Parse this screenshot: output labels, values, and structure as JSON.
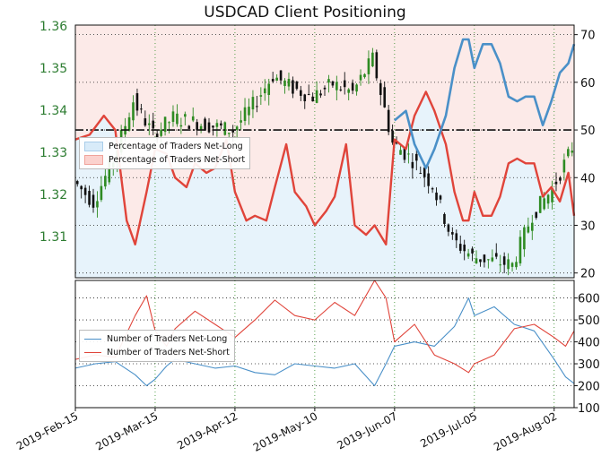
{
  "title": "USDCAD Client Positioning",
  "colors": {
    "price_axis": "#2e7d32",
    "up_candle": "#2e8b22",
    "down_candle": "#111111",
    "long": "#4a90c8",
    "short": "#e0443a",
    "long_fill": "#e6f2fb",
    "short_fill": "#fde6e4"
  },
  "x_ticks": [
    "2019-Feb-15",
    "2019-Mar-15",
    "2019-Apr-12",
    "2019-May-10",
    "2019-Jun-07",
    "2019-Jul-05",
    "2019-Aug-02"
  ],
  "legend_top": [
    "Percentage of Traders Net-Long",
    "Percentage of Traders Net-Short"
  ],
  "legend_bottom": [
    "Number of Traders Net-Long",
    "Number of Traders Net-Short"
  ],
  "chart_data": [
    {
      "type": "line",
      "title": "USDCAD Client Positioning",
      "x_range": [
        "2019-02-15",
        "2019-08-09"
      ],
      "left_axis": {
        "ticks": [
          1.31,
          1.32,
          1.33,
          1.34,
          1.35,
          1.36
        ],
        "range": [
          1.3,
          1.36
        ],
        "tick_color": "green"
      },
      "right_axis": {
        "ticks": [
          20,
          30,
          40,
          50,
          60,
          70
        ],
        "range": [
          19,
          72
        ]
      },
      "reference_line": {
        "axis": "right",
        "value": 50,
        "style": "dash-dot"
      },
      "price_candles_close": [
        {
          "date": "2019-02-15",
          "close": 1.323
        },
        {
          "date": "2019-02-22",
          "close": 1.318
        },
        {
          "date": "2019-03-01",
          "close": 1.328
        },
        {
          "date": "2019-03-08",
          "close": 1.342
        },
        {
          "date": "2019-03-15",
          "close": 1.334
        },
        {
          "date": "2019-03-22",
          "close": 1.338
        },
        {
          "date": "2019-03-29",
          "close": 1.337
        },
        {
          "date": "2019-04-05",
          "close": 1.336
        },
        {
          "date": "2019-04-12",
          "close": 1.335
        },
        {
          "date": "2019-04-19",
          "close": 1.341
        },
        {
          "date": "2019-04-26",
          "close": 1.348
        },
        {
          "date": "2019-05-03",
          "close": 1.345
        },
        {
          "date": "2019-05-10",
          "close": 1.343
        },
        {
          "date": "2019-05-17",
          "close": 1.346
        },
        {
          "date": "2019-05-24",
          "close": 1.344
        },
        {
          "date": "2019-05-31",
          "close": 1.352
        },
        {
          "date": "2019-06-07",
          "close": 1.332
        },
        {
          "date": "2019-06-14",
          "close": 1.328
        },
        {
          "date": "2019-06-21",
          "close": 1.322
        },
        {
          "date": "2019-06-28",
          "close": 1.309
        },
        {
          "date": "2019-07-05",
          "close": 1.305
        },
        {
          "date": "2019-07-12",
          "close": 1.304
        },
        {
          "date": "2019-07-19",
          "close": 1.303
        },
        {
          "date": "2019-07-26",
          "close": 1.315
        },
        {
          "date": "2019-08-02",
          "close": 1.321
        },
        {
          "date": "2019-08-09",
          "close": 1.331
        }
      ],
      "series": [
        {
          "name": "Percentage of Traders Net-Long",
          "axis": "right",
          "points": [
            {
              "date": "2019-06-07",
              "value": 52
            },
            {
              "date": "2019-06-11",
              "value": 54
            },
            {
              "date": "2019-06-14",
              "value": 47
            },
            {
              "date": "2019-06-18",
              "value": 42
            },
            {
              "date": "2019-06-21",
              "value": 46
            },
            {
              "date": "2019-06-25",
              "value": 53
            },
            {
              "date": "2019-06-28",
              "value": 63
            },
            {
              "date": "2019-07-01",
              "value": 69
            },
            {
              "date": "2019-07-03",
              "value": 69
            },
            {
              "date": "2019-07-05",
              "value": 63
            },
            {
              "date": "2019-07-08",
              "value": 68
            },
            {
              "date": "2019-07-11",
              "value": 68
            },
            {
              "date": "2019-07-14",
              "value": 64
            },
            {
              "date": "2019-07-17",
              "value": 57
            },
            {
              "date": "2019-07-20",
              "value": 56
            },
            {
              "date": "2019-07-23",
              "value": 57
            },
            {
              "date": "2019-07-26",
              "value": 57
            },
            {
              "date": "2019-07-29",
              "value": 51
            },
            {
              "date": "2019-08-01",
              "value": 56
            },
            {
              "date": "2019-08-04",
              "value": 62
            },
            {
              "date": "2019-08-07",
              "value": 64
            },
            {
              "date": "2019-08-09",
              "value": 68
            }
          ]
        },
        {
          "name": "Percentage of Traders Net-Short",
          "axis": "right",
          "points": [
            {
              "date": "2019-02-15",
              "value": 48
            },
            {
              "date": "2019-02-20",
              "value": 49
            },
            {
              "date": "2019-02-25",
              "value": 53
            },
            {
              "date": "2019-03-01",
              "value": 50
            },
            {
              "date": "2019-03-05",
              "value": 31
            },
            {
              "date": "2019-03-08",
              "value": 26
            },
            {
              "date": "2019-03-12",
              "value": 37
            },
            {
              "date": "2019-03-15",
              "value": 46
            },
            {
              "date": "2019-03-19",
              "value": 45
            },
            {
              "date": "2019-03-22",
              "value": 40
            },
            {
              "date": "2019-03-26",
              "value": 38
            },
            {
              "date": "2019-03-29",
              "value": 43
            },
            {
              "date": "2019-04-02",
              "value": 41
            },
            {
              "date": "2019-04-05",
              "value": 42
            },
            {
              "date": "2019-04-09",
              "value": 48
            },
            {
              "date": "2019-04-12",
              "value": 37
            },
            {
              "date": "2019-04-16",
              "value": 31
            },
            {
              "date": "2019-04-19",
              "value": 32
            },
            {
              "date": "2019-04-23",
              "value": 31
            },
            {
              "date": "2019-04-26",
              "value": 38
            },
            {
              "date": "2019-04-30",
              "value": 47
            },
            {
              "date": "2019-05-03",
              "value": 37
            },
            {
              "date": "2019-05-07",
              "value": 34
            },
            {
              "date": "2019-05-10",
              "value": 30
            },
            {
              "date": "2019-05-14",
              "value": 33
            },
            {
              "date": "2019-05-17",
              "value": 36
            },
            {
              "date": "2019-05-21",
              "value": 47
            },
            {
              "date": "2019-05-24",
              "value": 30
            },
            {
              "date": "2019-05-28",
              "value": 28
            },
            {
              "date": "2019-05-31",
              "value": 30
            },
            {
              "date": "2019-06-04",
              "value": 26
            },
            {
              "date": "2019-06-07",
              "value": 48
            },
            {
              "date": "2019-06-11",
              "value": 46
            },
            {
              "date": "2019-06-14",
              "value": 53
            },
            {
              "date": "2019-06-18",
              "value": 58
            },
            {
              "date": "2019-06-21",
              "value": 54
            },
            {
              "date": "2019-06-25",
              "value": 47
            },
            {
              "date": "2019-06-28",
              "value": 37
            },
            {
              "date": "2019-07-01",
              "value": 31
            },
            {
              "date": "2019-07-03",
              "value": 31
            },
            {
              "date": "2019-07-05",
              "value": 37
            },
            {
              "date": "2019-07-08",
              "value": 32
            },
            {
              "date": "2019-07-11",
              "value": 32
            },
            {
              "date": "2019-07-14",
              "value": 36
            },
            {
              "date": "2019-07-17",
              "value": 43
            },
            {
              "date": "2019-07-20",
              "value": 44
            },
            {
              "date": "2019-07-23",
              "value": 43
            },
            {
              "date": "2019-07-26",
              "value": 43
            },
            {
              "date": "2019-07-29",
              "value": 36
            },
            {
              "date": "2019-08-01",
              "value": 38
            },
            {
              "date": "2019-08-04",
              "value": 35
            },
            {
              "date": "2019-08-07",
              "value": 41
            },
            {
              "date": "2019-08-09",
              "value": 32
            }
          ]
        }
      ]
    },
    {
      "type": "line",
      "x_range": [
        "2019-02-15",
        "2019-08-09"
      ],
      "right_axis": {
        "ticks": [
          100,
          200,
          300,
          400,
          500,
          600
        ],
        "range": [
          100,
          680
        ]
      },
      "series": [
        {
          "name": "Number of Traders Net-Long",
          "points": [
            {
              "date": "2019-02-15",
              "value": 280
            },
            {
              "date": "2019-02-22",
              "value": 300
            },
            {
              "date": "2019-03-01",
              "value": 310
            },
            {
              "date": "2019-03-08",
              "value": 250
            },
            {
              "date": "2019-03-12",
              "value": 200
            },
            {
              "date": "2019-03-15",
              "value": 230
            },
            {
              "date": "2019-03-19",
              "value": 290
            },
            {
              "date": "2019-03-22",
              "value": 320
            },
            {
              "date": "2019-03-29",
              "value": 300
            },
            {
              "date": "2019-04-05",
              "value": 280
            },
            {
              "date": "2019-04-12",
              "value": 290
            },
            {
              "date": "2019-04-19",
              "value": 260
            },
            {
              "date": "2019-04-26",
              "value": 250
            },
            {
              "date": "2019-05-03",
              "value": 300
            },
            {
              "date": "2019-05-10",
              "value": 290
            },
            {
              "date": "2019-05-17",
              "value": 280
            },
            {
              "date": "2019-05-24",
              "value": 300
            },
            {
              "date": "2019-05-31",
              "value": 200
            },
            {
              "date": "2019-06-04",
              "value": 300
            },
            {
              "date": "2019-06-07",
              "value": 380
            },
            {
              "date": "2019-06-14",
              "value": 400
            },
            {
              "date": "2019-06-21",
              "value": 380
            },
            {
              "date": "2019-06-28",
              "value": 470
            },
            {
              "date": "2019-07-03",
              "value": 600
            },
            {
              "date": "2019-07-05",
              "value": 520
            },
            {
              "date": "2019-07-12",
              "value": 560
            },
            {
              "date": "2019-07-19",
              "value": 480
            },
            {
              "date": "2019-07-26",
              "value": 450
            },
            {
              "date": "2019-08-02",
              "value": 320
            },
            {
              "date": "2019-08-06",
              "value": 240
            },
            {
              "date": "2019-08-09",
              "value": 210
            }
          ]
        },
        {
          "name": "Number of Traders Net-Short",
          "points": [
            {
              "date": "2019-02-15",
              "value": 320
            },
            {
              "date": "2019-02-22",
              "value": 340
            },
            {
              "date": "2019-03-01",
              "value": 330
            },
            {
              "date": "2019-03-08",
              "value": 520
            },
            {
              "date": "2019-03-12",
              "value": 610
            },
            {
              "date": "2019-03-15",
              "value": 450
            },
            {
              "date": "2019-03-19",
              "value": 380
            },
            {
              "date": "2019-03-22",
              "value": 460
            },
            {
              "date": "2019-03-29",
              "value": 540
            },
            {
              "date": "2019-04-05",
              "value": 480
            },
            {
              "date": "2019-04-12",
              "value": 420
            },
            {
              "date": "2019-04-19",
              "value": 500
            },
            {
              "date": "2019-04-26",
              "value": 590
            },
            {
              "date": "2019-05-03",
              "value": 520
            },
            {
              "date": "2019-05-10",
              "value": 500
            },
            {
              "date": "2019-05-17",
              "value": 580
            },
            {
              "date": "2019-05-24",
              "value": 520
            },
            {
              "date": "2019-05-31",
              "value": 680
            },
            {
              "date": "2019-06-04",
              "value": 600
            },
            {
              "date": "2019-06-07",
              "value": 400
            },
            {
              "date": "2019-06-14",
              "value": 480
            },
            {
              "date": "2019-06-21",
              "value": 340
            },
            {
              "date": "2019-06-28",
              "value": 300
            },
            {
              "date": "2019-07-03",
              "value": 260
            },
            {
              "date": "2019-07-05",
              "value": 300
            },
            {
              "date": "2019-07-12",
              "value": 340
            },
            {
              "date": "2019-07-19",
              "value": 460
            },
            {
              "date": "2019-07-26",
              "value": 480
            },
            {
              "date": "2019-08-02",
              "value": 420
            },
            {
              "date": "2019-08-06",
              "value": 380
            },
            {
              "date": "2019-08-09",
              "value": 450
            }
          ]
        }
      ]
    }
  ]
}
